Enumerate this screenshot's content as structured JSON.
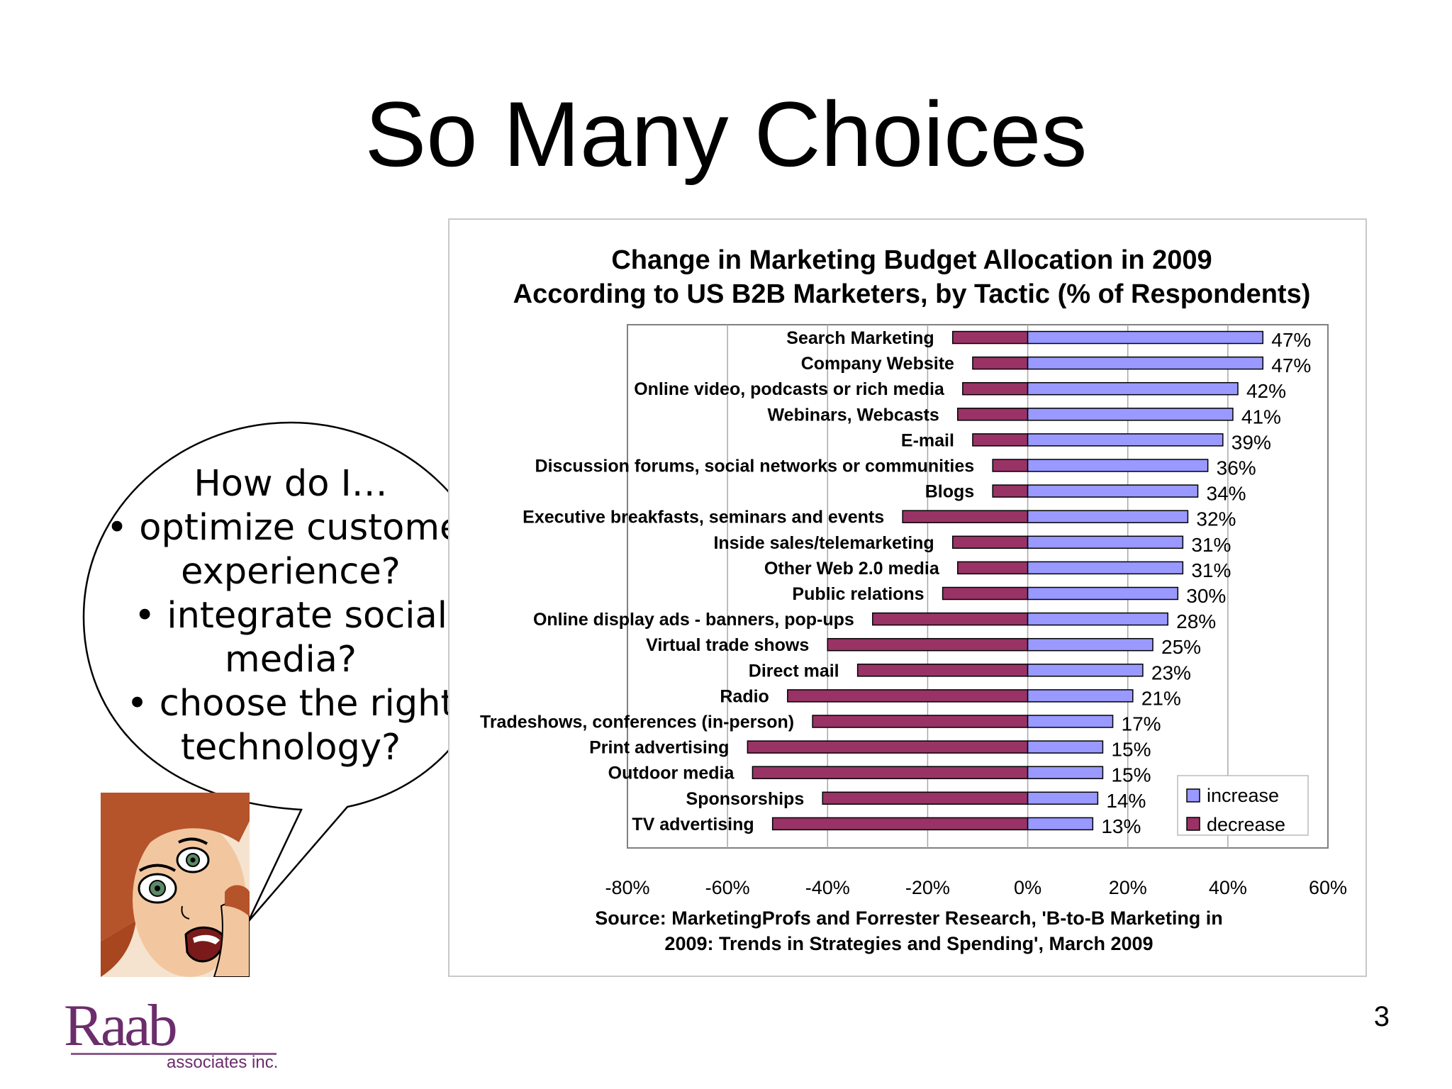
{
  "slide": {
    "title": "So Many Choices",
    "page_number": "3",
    "bubble_lines": [
      "How do I…",
      "• optimize customer",
      "experience?",
      "• integrate social",
      "media?",
      "• choose the right",
      "technology?"
    ],
    "logo_main": "Raab",
    "logo_sub": "associates inc."
  },
  "chart_data": {
    "type": "bar",
    "orientation": "horizontal",
    "title_lines": [
      "Change in Marketing Budget Allocation in 2009",
      "According to US B2B Marketers, by Tactic (% of Respondents)"
    ],
    "categories": [
      "Search Marketing",
      "Company Website",
      "Online video, podcasts or rich media",
      "Webinars, Webcasts",
      "E-mail",
      "Discussion forums, social networks or communities",
      "Blogs",
      "Executive breakfasts, seminars and events",
      "Inside sales/telemarketing",
      "Other Web 2.0 media",
      "Public relations",
      "Online display ads - banners, pop-ups",
      "Virtual trade shows",
      "Direct mail",
      "Radio",
      "Tradeshows, conferences (in-person)",
      "Print advertising",
      "Outdoor media",
      "Sponsorships",
      "TV advertising"
    ],
    "series": [
      {
        "name": "increase",
        "color": "#9999ff",
        "values": [
          47,
          47,
          42,
          41,
          39,
          36,
          34,
          32,
          31,
          31,
          30,
          28,
          25,
          23,
          21,
          17,
          15,
          15,
          14,
          13
        ],
        "labels": [
          "47%",
          "47%",
          "42%",
          "41%",
          "39%",
          "36%",
          "34%",
          "32%",
          "31%",
          "31%",
          "30%",
          "28%",
          "25%",
          "23%",
          "21%",
          "17%",
          "15%",
          "15%",
          "14%",
          "13%"
        ]
      },
      {
        "name": "decrease",
        "color": "#993366",
        "values": [
          -15,
          -11,
          -13,
          -14,
          -11,
          -7,
          -7,
          -25,
          -15,
          -14,
          -17,
          -31,
          -40,
          -34,
          -48,
          -43,
          -56,
          -55,
          -41,
          -51
        ]
      }
    ],
    "x_ticks": [
      "-80%",
      "-60%",
      "-40%",
      "-20%",
      "0%",
      "20%",
      "40%",
      "60%"
    ],
    "xlim": [
      -80,
      60
    ],
    "grid": true,
    "legend": "bottom-right",
    "source_lines": [
      "Source: MarketingProfs and Forrester Research, 'B-to-B Marketing in",
      "2009: Trends in Strategies and Spending', March 2009"
    ]
  }
}
